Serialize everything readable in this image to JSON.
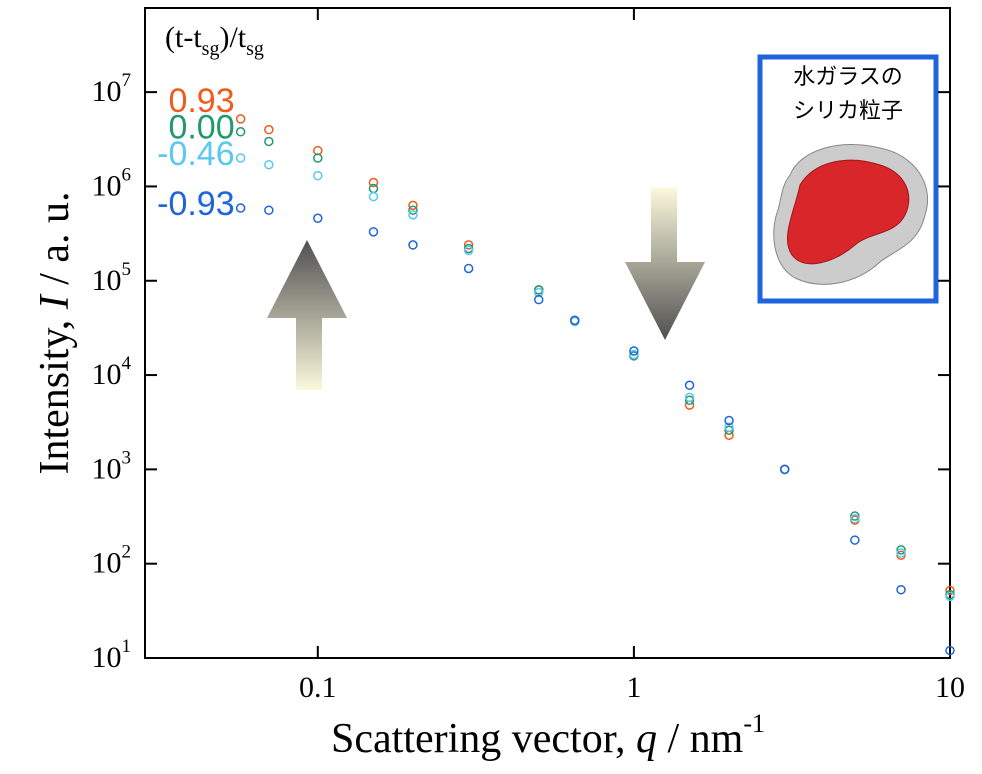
{
  "chart_data": {
    "type": "scatter",
    "x_label_parts": [
      "Scattering vector, ",
      "q",
      " / nm",
      "-1"
    ],
    "y_label_parts": [
      "Intensity, ",
      "I",
      " / a. u."
    ],
    "legend_title_parts": [
      "(t-t",
      "sg",
      ")/t",
      "sg"
    ],
    "annotation_lines": [
      "水ガラスの",
      "シリカ粒子"
    ],
    "x_log": true,
    "y_log": true,
    "xlim": [
      0.0284,
      10
    ],
    "ylim": [
      10,
      78000000
    ],
    "xticks": [
      0.1,
      1,
      10
    ],
    "yticks": [
      {
        "value": 10,
        "label": "10",
        "sup": "1"
      },
      {
        "value": 100,
        "label": "10",
        "sup": "2"
      },
      {
        "value": 1000,
        "label": "10",
        "sup": "3"
      },
      {
        "value": 10000,
        "label": "10",
        "sup": "4"
      },
      {
        "value": 100000,
        "label": "10",
        "sup": "5"
      },
      {
        "value": 1000000,
        "label": "10",
        "sup": "6"
      },
      {
        "value": 10000000,
        "label": "10",
        "sup": "7"
      }
    ],
    "x": [
      0.057,
      0.07,
      0.1,
      0.15,
      0.2,
      0.3,
      0.5,
      0.65,
      1,
      1.5,
      2,
      3,
      5,
      7,
      10
    ],
    "series": [
      {
        "name": "0.93",
        "color": "#f05a1e",
        "values": [
          5200000,
          4000000,
          2400000,
          1100000,
          630000,
          240000,
          80000,
          38000,
          16000,
          4800,
          2300,
          1000,
          290,
          123,
          52
        ]
      },
      {
        "name": "0.00",
        "color": "#1e9a6e",
        "values": [
          3800000,
          3000000,
          2000000,
          950000,
          560000,
          220000,
          80000,
          38000,
          16000,
          5400,
          2600,
          1000,
          320,
          140,
          47
        ]
      },
      {
        "name": "-0.46",
        "color": "#5ac8f0",
        "values": [
          2000000,
          1700000,
          1300000,
          780000,
          500000,
          210000,
          75000,
          37000,
          16500,
          5800,
          2800,
          1000,
          300,
          130,
          45
        ]
      },
      {
        "name": "-0.93",
        "color": "#1e64dc",
        "values": [
          590000,
          560000,
          460000,
          330000,
          240000,
          135000,
          63000,
          38000,
          18000,
          7800,
          3300,
          1000,
          178,
          53,
          12
        ]
      }
    ]
  }
}
